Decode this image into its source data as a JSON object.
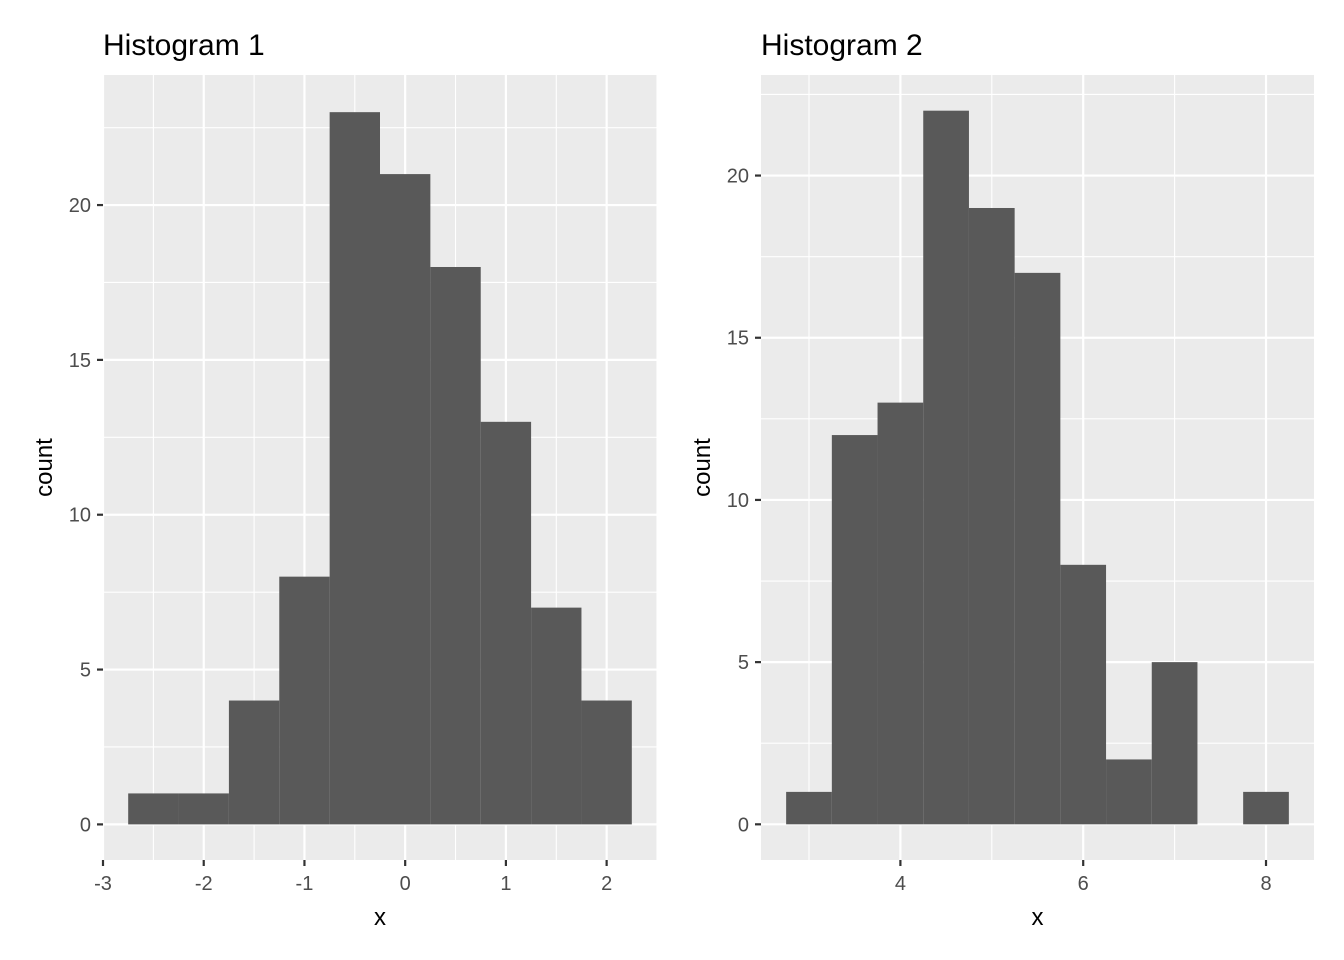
{
  "colors": {
    "panel": "#ebebeb",
    "grid": "#ffffff",
    "bar": "#595959",
    "tick_text": "#4d4d4d"
  },
  "chart_data": [
    {
      "type": "bar",
      "title": "Histogram 1",
      "xlabel": "x",
      "ylabel": "count",
      "xlim": [
        -3,
        2.5
      ],
      "ylim": [
        -1.15,
        24.2
      ],
      "x_ticks": [
        -3,
        -2,
        -1,
        0,
        1,
        2
      ],
      "y_ticks": [
        0,
        5,
        10,
        15,
        20
      ],
      "x_tick_labels": [
        "-3",
        "-2",
        "-1",
        "0",
        "1",
        "2"
      ],
      "y_tick_labels": [
        "0",
        "5",
        "10",
        "15",
        "20"
      ],
      "bins": [
        {
          "x0": -2.75,
          "x1": -2.25,
          "count": 1
        },
        {
          "x0": -2.25,
          "x1": -1.75,
          "count": 1
        },
        {
          "x0": -1.75,
          "x1": -1.25,
          "count": 4
        },
        {
          "x0": -1.25,
          "x1": -0.75,
          "count": 8
        },
        {
          "x0": -0.75,
          "x1": -0.25,
          "count": 23
        },
        {
          "x0": -0.25,
          "x1": 0.25,
          "count": 21
        },
        {
          "x0": 0.25,
          "x1": 0.75,
          "count": 18
        },
        {
          "x0": 0.75,
          "x1": 1.25,
          "count": 13
        },
        {
          "x0": 1.25,
          "x1": 1.75,
          "count": 7
        },
        {
          "x0": 1.75,
          "x1": 2.25,
          "count": 4
        }
      ]
    },
    {
      "type": "bar",
      "title": "Histogram 2",
      "xlabel": "x",
      "ylabel": "count",
      "xlim": [
        2.475,
        8.525
      ],
      "ylim": [
        -1.1,
        23.1
      ],
      "x_ticks": [
        4,
        6,
        8
      ],
      "y_ticks": [
        0,
        5,
        10,
        15,
        20
      ],
      "x_tick_labels": [
        "4",
        "6",
        "8"
      ],
      "y_tick_labels": [
        "0",
        "5",
        "10",
        "15",
        "20"
      ],
      "bins": [
        {
          "x0": 2.75,
          "x1": 3.25,
          "count": 1
        },
        {
          "x0": 3.25,
          "x1": 3.75,
          "count": 12
        },
        {
          "x0": 3.75,
          "x1": 4.25,
          "count": 13
        },
        {
          "x0": 4.25,
          "x1": 4.75,
          "count": 22
        },
        {
          "x0": 4.75,
          "x1": 5.25,
          "count": 19
        },
        {
          "x0": 5.25,
          "x1": 5.75,
          "count": 17
        },
        {
          "x0": 5.75,
          "x1": 6.25,
          "count": 8
        },
        {
          "x0": 6.25,
          "x1": 6.75,
          "count": 2
        },
        {
          "x0": 6.75,
          "x1": 7.25,
          "count": 5
        },
        {
          "x0": 7.25,
          "x1": 7.75,
          "count": 0
        },
        {
          "x0": 7.75,
          "x1": 8.25,
          "count": 1
        }
      ]
    }
  ]
}
